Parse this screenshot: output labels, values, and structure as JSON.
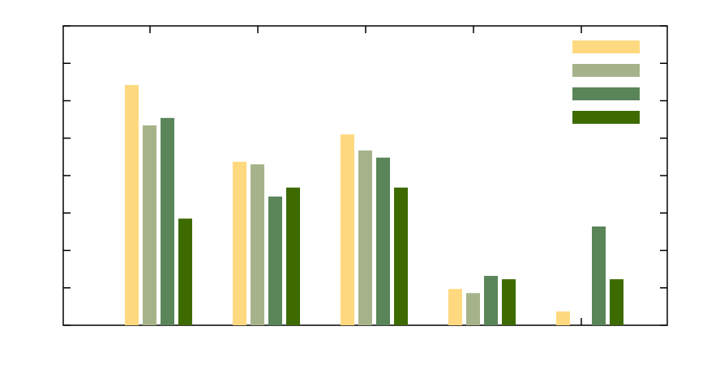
{
  "chart_data": {
    "type": "bar",
    "categories": [
      null,
      null,
      null,
      null,
      null
    ],
    "series": [
      {
        "color": "#ffd97f",
        "values": [
          6.42,
          4.37,
          5.1,
          0.97,
          0.37
        ]
      },
      {
        "color": "#a6b38a",
        "values": [
          5.34,
          4.3,
          4.67,
          0.86,
          null
        ]
      },
      {
        "color": "#5a8559",
        "values": [
          5.54,
          3.44,
          4.48,
          1.32,
          2.64
        ]
      },
      {
        "color": "#3d6b00",
        "values": [
          2.85,
          3.68,
          3.68,
          1.23,
          1.23
        ]
      }
    ],
    "ylim": [
      0,
      8
    ],
    "yticks": [
      0,
      1,
      2,
      3,
      4,
      5,
      6,
      7,
      8
    ],
    "legend": "upper right"
  }
}
